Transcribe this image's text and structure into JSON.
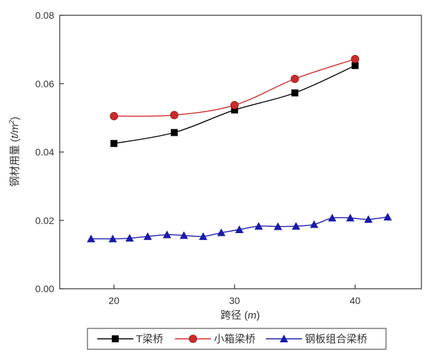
{
  "chart_data": {
    "type": "line",
    "xlabel_prefix": "跨径 (",
    "xlabel_unit": "m",
    "xlabel_suffix": ")",
    "ylabel_prefix": "钢材用量 (",
    "ylabel_unit": "t/m",
    "ylabel_sup": "2",
    "ylabel_suffix": ")",
    "xlim": [
      15.5,
      45.5
    ],
    "ylim": [
      0,
      0.08
    ],
    "xticks": [
      20,
      30,
      40
    ],
    "xtick_labels": [
      "20",
      "30",
      "40"
    ],
    "yticks": [
      0,
      0.02,
      0.04,
      0.06,
      0.08
    ],
    "ytick_labels": [
      "0.00",
      "0.02",
      "0.04",
      "0.06",
      "0.08"
    ],
    "grid": false,
    "legend_position": "bottom",
    "series": [
      {
        "name": "T梁桥",
        "color": "#000000",
        "marker": "square",
        "x": [
          20,
          25,
          30,
          35,
          40
        ],
        "y": [
          0.0425,
          0.0457,
          0.0523,
          0.0573,
          0.0653
        ]
      },
      {
        "name": "小箱梁桥",
        "color": "#cc2b2b",
        "marker": "circle",
        "x": [
          20,
          25,
          30,
          35,
          40
        ],
        "y": [
          0.0505,
          0.0508,
          0.0537,
          0.0614,
          0.0672
        ]
      },
      {
        "name": "钢板组合梁桥",
        "color": "#1a1aa8",
        "marker": "triangle",
        "x": [
          18.1,
          19.9,
          21.3,
          22.8,
          24.4,
          25.8,
          27.4,
          28.9,
          30.4,
          32.0,
          33.6,
          35.1,
          36.6,
          38.1,
          39.6,
          41.1,
          42.7
        ],
        "y": [
          0.0146,
          0.0146,
          0.0148,
          0.0153,
          0.0158,
          0.0156,
          0.0153,
          0.0164,
          0.0173,
          0.0183,
          0.0182,
          0.0183,
          0.0188,
          0.0207,
          0.0207,
          0.0203,
          0.021
        ]
      }
    ]
  }
}
